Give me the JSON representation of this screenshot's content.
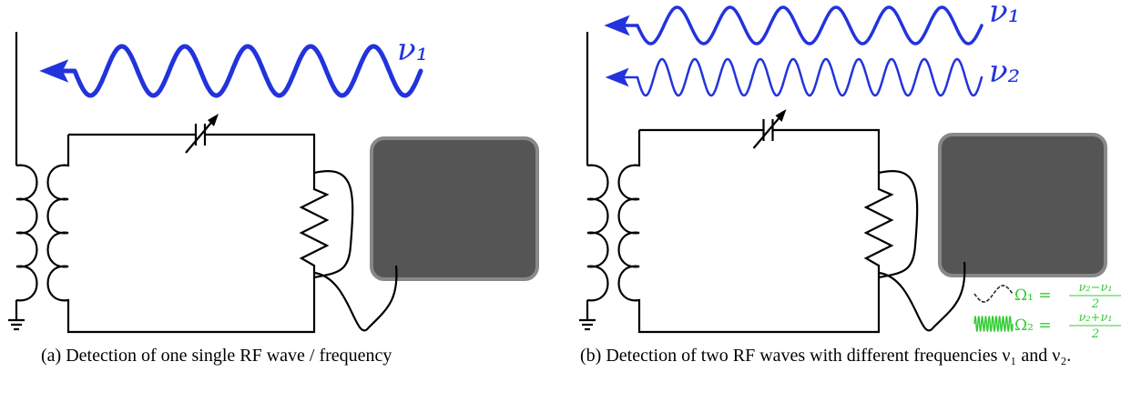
{
  "panel_a": {
    "wave_label": "ν₁",
    "caption": "(a) Detection of one single RF wave / frequency"
  },
  "panel_b": {
    "wave_labels": [
      "ν₁",
      "ν₂"
    ],
    "legend": [
      {
        "lhs": "Ω₁ =",
        "numerator": "ν₂−ν₁",
        "denominator": "2"
      },
      {
        "lhs": "Ω₂ =",
        "numerator": "ν₂+ν₁",
        "denominator": "2"
      }
    ],
    "caption": "(b) Detection of two RF waves with different frequencies ν₁ and ν₂."
  }
}
